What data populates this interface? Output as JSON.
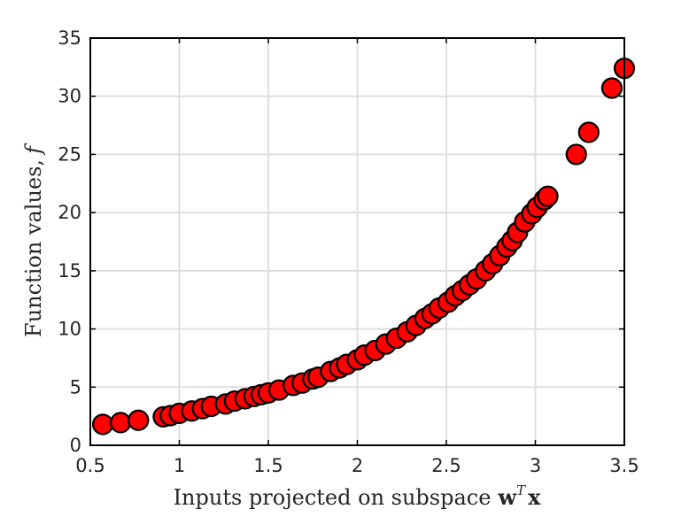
{
  "chart_data": {
    "type": "scatter",
    "title": "",
    "xlabel": "Inputs projected on subspace",
    "xlabel_math_vector": "w",
    "xlabel_math_sup": "T",
    "xlabel_math_vector2": "x",
    "ylabel": "Function values,",
    "ylabel_math": "f",
    "xlim": [
      0.5,
      3.5
    ],
    "ylim": [
      0,
      35
    ],
    "xticks": [
      0.5,
      1,
      1.5,
      2,
      2.5,
      3,
      3.5
    ],
    "xtick_labels": [
      "0.5",
      "1",
      "1.5",
      "2",
      "2.5",
      "3",
      "3.5"
    ],
    "yticks": [
      0,
      5,
      10,
      15,
      20,
      25,
      30,
      35
    ],
    "ytick_labels": [
      "0",
      "5",
      "10",
      "15",
      "20",
      "25",
      "30",
      "35"
    ],
    "grid": true,
    "marker_color": "#ff0000",
    "marker_edge_color": "#000000",
    "series": [
      {
        "x": [
          0.57,
          0.67,
          0.77,
          0.91,
          0.95,
          1.0,
          1.07,
          1.13,
          1.18,
          1.26,
          1.31,
          1.37,
          1.42,
          1.46,
          1.5,
          1.56,
          1.64,
          1.69,
          1.75,
          1.78,
          1.85,
          1.9,
          1.94,
          2.0,
          2.04,
          2.1,
          2.16,
          2.22,
          2.28,
          2.33,
          2.38,
          2.42,
          2.46,
          2.51,
          2.55,
          2.59,
          2.63,
          2.67,
          2.72,
          2.76,
          2.8,
          2.84,
          2.87,
          2.9,
          2.94,
          2.98,
          3.01,
          3.05,
          3.07,
          3.23,
          3.3,
          3.43,
          3.5
        ],
        "y": [
          1.8,
          1.95,
          2.15,
          2.45,
          2.55,
          2.75,
          2.95,
          3.15,
          3.35,
          3.55,
          3.8,
          4.0,
          4.2,
          4.35,
          4.5,
          4.75,
          5.15,
          5.35,
          5.7,
          5.85,
          6.35,
          6.65,
          6.95,
          7.35,
          7.75,
          8.15,
          8.7,
          9.2,
          9.75,
          10.3,
          10.9,
          11.3,
          11.8,
          12.3,
          12.85,
          13.3,
          13.8,
          14.3,
          15.0,
          15.6,
          16.3,
          17.05,
          17.6,
          18.3,
          19.2,
          19.9,
          20.45,
          21.1,
          21.4,
          25.0,
          26.9,
          30.7,
          32.4
        ]
      }
    ]
  }
}
